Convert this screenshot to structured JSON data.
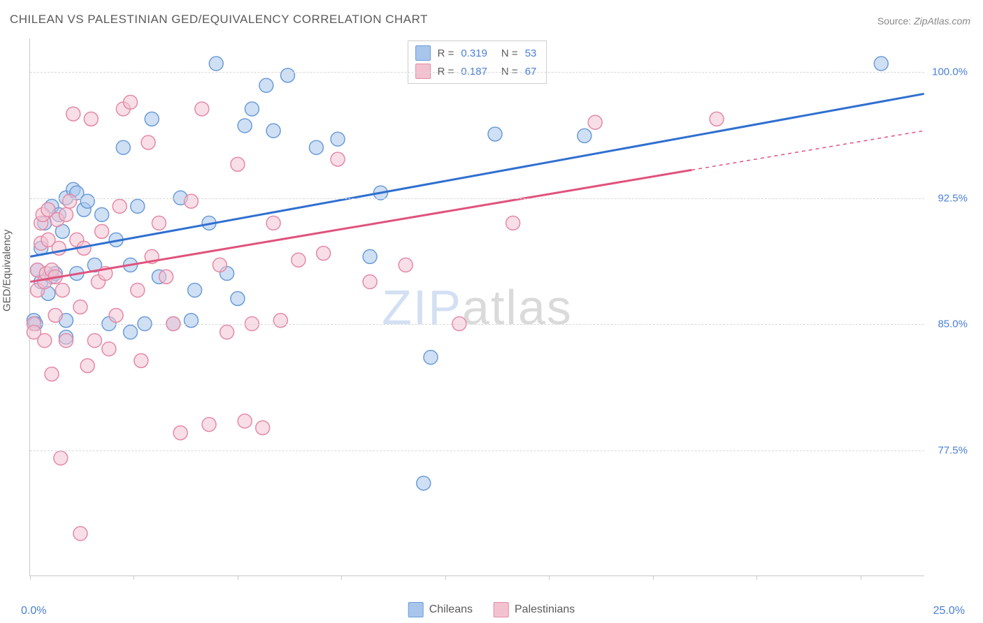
{
  "title": "CHILEAN VS PALESTINIAN GED/EQUIVALENCY CORRELATION CHART",
  "source_prefix": "Source: ",
  "source_name": "ZipAtlas.com",
  "watermark_a": "ZIP",
  "watermark_b": "atlas",
  "y_axis_title": "GED/Equivalency",
  "chart": {
    "type": "scatter",
    "background_color": "#ffffff",
    "grid_color": "#d8d8d8",
    "border_color": "#c8c8c8",
    "xlim": [
      0.0,
      25.0
    ],
    "ylim": [
      70.0,
      102.0
    ],
    "x_ticks": [
      0.0,
      2.9,
      5.8,
      8.7,
      11.6,
      14.5,
      17.4,
      20.3,
      23.2
    ],
    "x_tick_labels": {
      "left": "0.0%",
      "right": "25.0%"
    },
    "y_gridlines": [
      77.5,
      85.0,
      92.5,
      100.0
    ],
    "y_tick_labels": [
      "77.5%",
      "85.0%",
      "92.5%",
      "100.0%"
    ],
    "axis_label_color": "#4a7fd6",
    "axis_label_fontsize": 15,
    "title_color": "#5a5a5a",
    "title_fontsize": 17,
    "point_radius": 10,
    "point_opacity": 0.55,
    "line_width": 3,
    "series": [
      {
        "name": "Chileans",
        "R": "0.319",
        "N": "53",
        "fill_color": "#a8c6ec",
        "stroke_color": "#6a9bd8",
        "line_color": "#2f6fd0",
        "trend_line": {
          "x1": 0.0,
          "y1": 89.0,
          "x2": 25.0,
          "y2": 98.7,
          "dashed_from_x": null
        },
        "points": [
          [
            0.1,
            85.2
          ],
          [
            0.15,
            85.0
          ],
          [
            0.2,
            88.2
          ],
          [
            0.3,
            87.5
          ],
          [
            0.3,
            89.5
          ],
          [
            0.4,
            91.0
          ],
          [
            0.5,
            86.8
          ],
          [
            0.6,
            87.8
          ],
          [
            0.6,
            92.0
          ],
          [
            0.7,
            88.0
          ],
          [
            0.8,
            91.5
          ],
          [
            0.9,
            90.5
          ],
          [
            1.0,
            85.2
          ],
          [
            1.0,
            84.2
          ],
          [
            1.0,
            92.5
          ],
          [
            1.2,
            93.0
          ],
          [
            1.3,
            88.0
          ],
          [
            1.3,
            92.8
          ],
          [
            1.5,
            91.8
          ],
          [
            1.6,
            92.3
          ],
          [
            1.8,
            88.5
          ],
          [
            2.0,
            91.5
          ],
          [
            2.2,
            85.0
          ],
          [
            2.4,
            90.0
          ],
          [
            2.6,
            95.5
          ],
          [
            2.8,
            88.5
          ],
          [
            2.8,
            84.5
          ],
          [
            3.0,
            92.0
          ],
          [
            3.2,
            85.0
          ],
          [
            3.4,
            97.2
          ],
          [
            3.6,
            87.8
          ],
          [
            4.0,
            85.0
          ],
          [
            4.2,
            92.5
          ],
          [
            4.5,
            85.2
          ],
          [
            4.6,
            87.0
          ],
          [
            5.0,
            91.0
          ],
          [
            5.2,
            100.5
          ],
          [
            5.5,
            88.0
          ],
          [
            5.8,
            86.5
          ],
          [
            6.0,
            96.8
          ],
          [
            6.2,
            97.8
          ],
          [
            6.6,
            99.2
          ],
          [
            6.8,
            96.5
          ],
          [
            7.2,
            99.8
          ],
          [
            8.0,
            95.5
          ],
          [
            8.6,
            96.0
          ],
          [
            9.5,
            89.0
          ],
          [
            9.8,
            92.8
          ],
          [
            11.2,
            83.0
          ],
          [
            11.0,
            75.5
          ],
          [
            13.0,
            96.3
          ],
          [
            15.5,
            96.2
          ],
          [
            23.8,
            100.5
          ]
        ]
      },
      {
        "name": "Palestinians",
        "R": "0.187",
        "N": "67",
        "fill_color": "#f3c2d1",
        "stroke_color": "#e589a5",
        "line_color": "#e0527d",
        "trend_line": {
          "x1": 0.0,
          "y1": 87.5,
          "x2": 25.0,
          "y2": 96.5,
          "dashed_from_x": 18.5
        },
        "points": [
          [
            0.1,
            85.0
          ],
          [
            0.1,
            84.5
          ],
          [
            0.2,
            87.0
          ],
          [
            0.2,
            88.2
          ],
          [
            0.3,
            89.8
          ],
          [
            0.3,
            91.0
          ],
          [
            0.35,
            91.5
          ],
          [
            0.4,
            87.5
          ],
          [
            0.4,
            84.0
          ],
          [
            0.45,
            88.0
          ],
          [
            0.5,
            90.0
          ],
          [
            0.5,
            91.8
          ],
          [
            0.6,
            88.2
          ],
          [
            0.6,
            82.0
          ],
          [
            0.7,
            85.5
          ],
          [
            0.7,
            87.8
          ],
          [
            0.75,
            91.2
          ],
          [
            0.8,
            89.5
          ],
          [
            0.85,
            77.0
          ],
          [
            0.9,
            87.0
          ],
          [
            1.0,
            91.5
          ],
          [
            1.0,
            84.0
          ],
          [
            1.1,
            92.3
          ],
          [
            1.2,
            97.5
          ],
          [
            1.3,
            90.0
          ],
          [
            1.4,
            86.0
          ],
          [
            1.4,
            72.5
          ],
          [
            1.5,
            89.5
          ],
          [
            1.6,
            82.5
          ],
          [
            1.7,
            97.2
          ],
          [
            1.8,
            84.0
          ],
          [
            1.9,
            87.5
          ],
          [
            2.0,
            90.5
          ],
          [
            2.1,
            88.0
          ],
          [
            2.2,
            83.5
          ],
          [
            2.4,
            85.5
          ],
          [
            2.5,
            92.0
          ],
          [
            2.6,
            97.8
          ],
          [
            2.8,
            98.2
          ],
          [
            3.0,
            87.0
          ],
          [
            3.1,
            82.8
          ],
          [
            3.3,
            95.8
          ],
          [
            3.4,
            89.0
          ],
          [
            3.6,
            91.0
          ],
          [
            3.8,
            87.8
          ],
          [
            4.0,
            85.0
          ],
          [
            4.2,
            78.5
          ],
          [
            4.5,
            92.3
          ],
          [
            4.8,
            97.8
          ],
          [
            5.0,
            79.0
          ],
          [
            5.3,
            88.5
          ],
          [
            5.5,
            84.5
          ],
          [
            5.8,
            94.5
          ],
          [
            6.0,
            79.2
          ],
          [
            6.2,
            85.0
          ],
          [
            6.5,
            78.8
          ],
          [
            6.8,
            91.0
          ],
          [
            7.0,
            85.2
          ],
          [
            7.5,
            88.8
          ],
          [
            8.2,
            89.2
          ],
          [
            8.6,
            94.8
          ],
          [
            9.5,
            87.5
          ],
          [
            10.5,
            88.5
          ],
          [
            12.0,
            85.0
          ],
          [
            13.5,
            91.0
          ],
          [
            15.8,
            97.0
          ],
          [
            19.2,
            97.2
          ]
        ]
      }
    ]
  },
  "legend_bottom": [
    {
      "label": "Chileans",
      "swatch_fill": "#a8c6ec",
      "swatch_stroke": "#6a9bd8"
    },
    {
      "label": "Palestinians",
      "swatch_fill": "#f3c2d1",
      "swatch_stroke": "#e589a5"
    }
  ]
}
